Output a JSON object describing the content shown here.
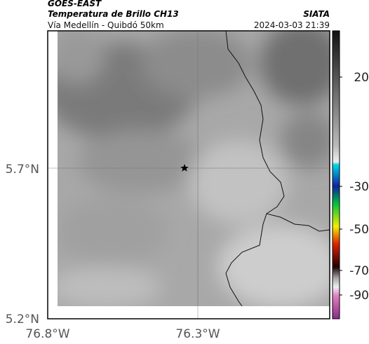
{
  "header": {
    "satellite": "GOES-EAST",
    "product": "Temperatura de Brillo CH13",
    "source": "SIATA",
    "route": "Vía Medellín - Quibdó 50km",
    "datetime": "2024-03-03 21:39"
  },
  "axes": {
    "yticks": [
      "5.7°N",
      "5.2°N"
    ],
    "xticks": [
      "76.8°W",
      "76.3°W"
    ]
  },
  "colorbar": {
    "ticks": [
      20,
      -30,
      -50,
      -70,
      -90
    ]
  }
}
